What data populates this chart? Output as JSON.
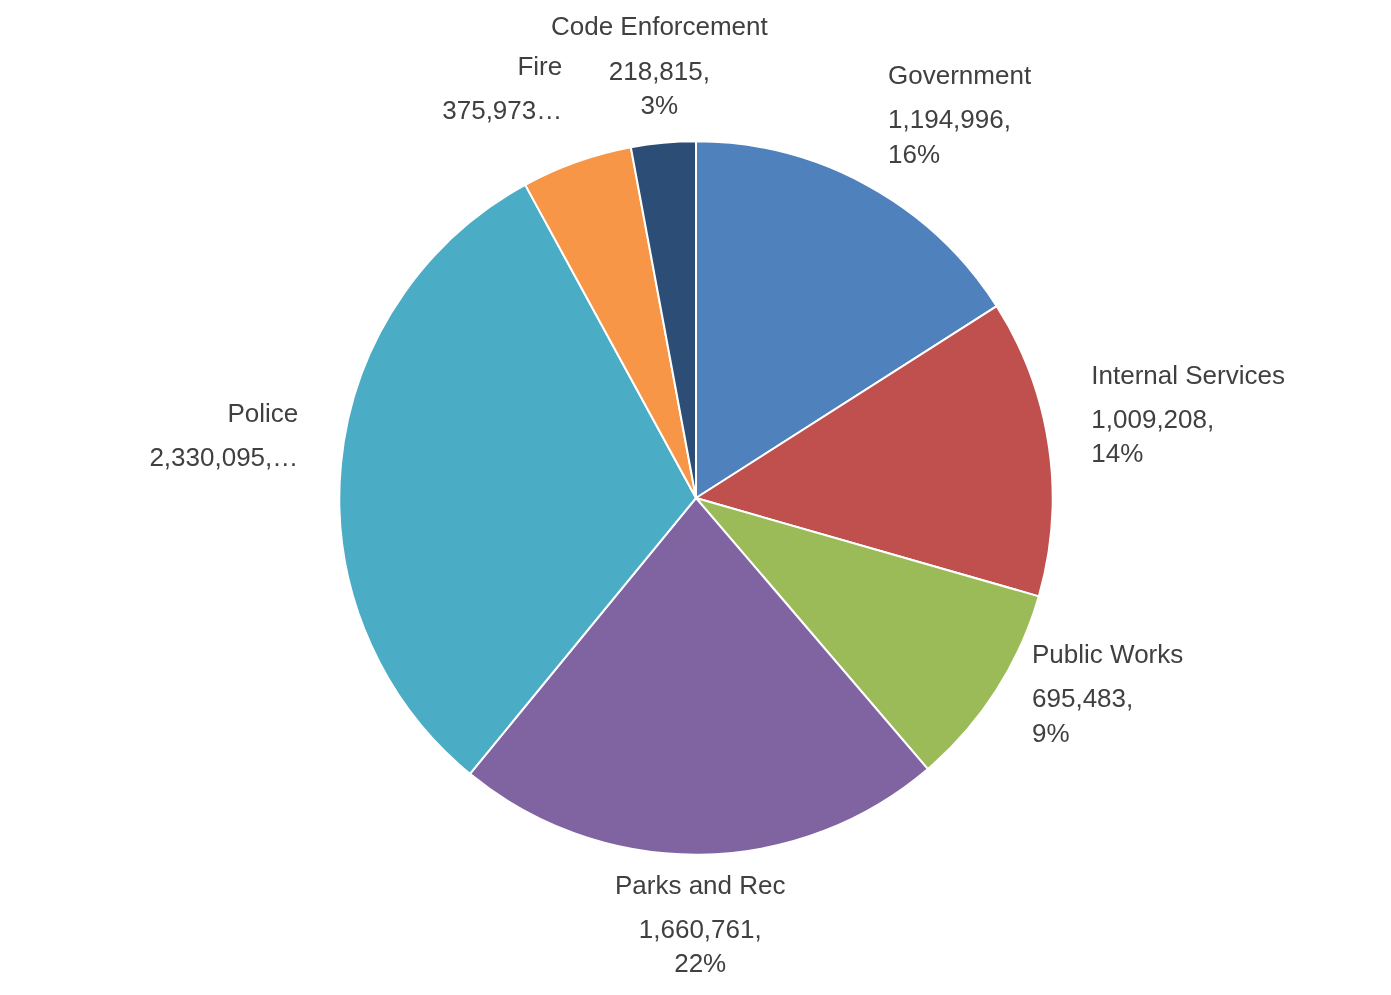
{
  "chart_data": {
    "type": "pie",
    "categories": [
      "Government",
      "Internal Services",
      "Public Works",
      "Parks and Rec",
      "Police",
      "Fire",
      "Code Enforcement"
    ],
    "values": [
      1194996,
      1009208,
      695483,
      1660761,
      2330095,
      375973,
      218815
    ],
    "colors": [
      "#4f81bd",
      "#c0504d",
      "#9bbb59",
      "#8064a2",
      "#4bacc6",
      "#f79646",
      "#2c4d75"
    ],
    "value_labels": [
      "1,194,996, 16%",
      "1,009,208, 14%",
      "695,483, 9%",
      "1,660,761, 22%",
      "2,330,095,…",
      "375,973…",
      "218,815, 3%"
    ]
  }
}
